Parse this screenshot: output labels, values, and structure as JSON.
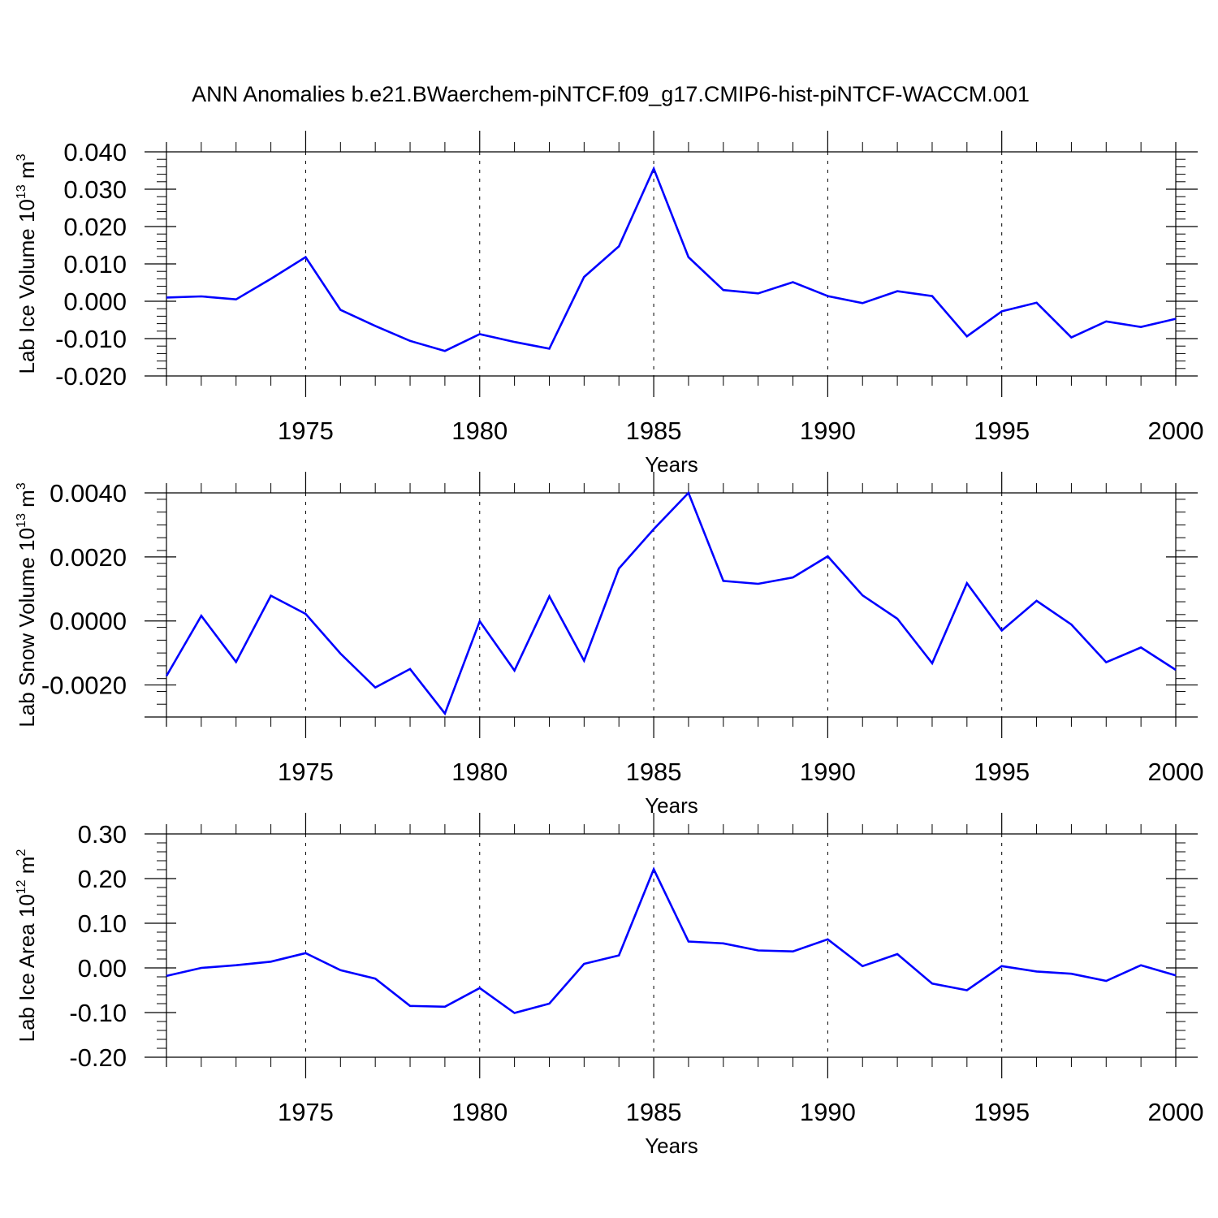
{
  "title": "ANN Anomalies b.e21.BWaerchem-piNTCF.f09_g17.CMIP6-hist-piNTCF-WACCM.001",
  "line_color": "#0000ff",
  "chart_data": [
    {
      "type": "line",
      "ylabel": "Lab Ice Volume",
      "yunit_base": "10",
      "yunit_exp": "13",
      "yunit_tail": "m",
      "yunit_tail_exp": "3",
      "xlabel": "Years",
      "xlim": [
        1971,
        2000
      ],
      "ylim": [
        -0.02,
        0.04
      ],
      "yticks": [
        -0.02,
        -0.01,
        0.0,
        0.01,
        0.02,
        0.03,
        0.04
      ],
      "ytick_labels": [
        "-0.020",
        "-0.010",
        "0.000",
        "0.010",
        "0.020",
        "0.030",
        "0.040"
      ],
      "xticks": [
        1975,
        1980,
        1985,
        1990,
        1995,
        2000
      ],
      "xtick_labels": [
        "1975",
        "1980",
        "1985",
        "1990",
        "1995",
        "2000"
      ],
      "grid": "vertical dashed lines at x tick positions",
      "series": [
        {
          "x": [
            1971,
            1972,
            1973,
            1974,
            1975,
            1976,
            1977,
            1978,
            1979,
            1980,
            1981,
            1982,
            1983,
            1984,
            1985,
            1986,
            1987,
            1988,
            1989,
            1990,
            1991,
            1992,
            1993,
            1994,
            1995,
            1996,
            1997,
            1998,
            1999,
            2000
          ],
          "values": [
            0.001,
            0.0013,
            0.0005,
            0.006,
            0.0118,
            -0.0023,
            -0.0066,
            -0.0106,
            -0.0133,
            -0.0088,
            -0.0109,
            -0.0127,
            0.0065,
            0.0147,
            0.0355,
            0.0118,
            0.003,
            0.0021,
            0.0051,
            0.0014,
            -0.0005,
            0.0027,
            0.0014,
            -0.0094,
            -0.0027,
            -0.0004,
            -0.0097,
            -0.0054,
            -0.0069,
            -0.0047
          ]
        }
      ]
    },
    {
      "type": "line",
      "ylabel": "Lab Snow Volume",
      "yunit_base": "10",
      "yunit_exp": "13",
      "yunit_tail": "m",
      "yunit_tail_exp": "3",
      "xlabel": "Years",
      "xlim": [
        1971,
        2000
      ],
      "ylim": [
        -0.003,
        0.004
      ],
      "yticks": [
        -0.002,
        0.0,
        0.002,
        0.004
      ],
      "ytick_labels": [
        "-0.0020",
        "0.0000",
        "0.0020",
        "0.0040"
      ],
      "xticks": [
        1975,
        1980,
        1985,
        1990,
        1995,
        2000
      ],
      "xtick_labels": [
        "1975",
        "1980",
        "1985",
        "1990",
        "1995",
        "2000"
      ],
      "grid": "vertical dashed lines at x tick positions",
      "series": [
        {
          "x": [
            1971,
            1972,
            1973,
            1974,
            1975,
            1976,
            1977,
            1978,
            1979,
            1980,
            1981,
            1982,
            1983,
            1984,
            1985,
            1986,
            1987,
            1988,
            1989,
            1990,
            1991,
            1992,
            1993,
            1994,
            1995,
            1996,
            1997,
            1998,
            1999,
            2000
          ],
          "values": [
            -0.00172,
            0.00016,
            -0.00128,
            0.00079,
            0.00022,
            -0.00102,
            -0.00208,
            -0.0015,
            -0.00289,
            -1e-05,
            -0.00155,
            0.00077,
            -0.00124,
            0.00164,
            0.00287,
            0.004,
            0.00125,
            0.00116,
            0.00136,
            0.00202,
            0.0008,
            7e-05,
            -0.00132,
            0.00118,
            -0.0003,
            0.00063,
            -0.00011,
            -0.00129,
            -0.00083,
            -0.00153
          ]
        }
      ]
    },
    {
      "type": "line",
      "ylabel": "Lab Ice Area",
      "yunit_base": "10",
      "yunit_exp": "12",
      "yunit_tail": "m",
      "yunit_tail_exp": "2",
      "xlabel": "Years",
      "xlim": [
        1971,
        2000
      ],
      "ylim": [
        -0.2,
        0.3
      ],
      "yticks": [
        -0.2,
        -0.1,
        0.0,
        0.1,
        0.2,
        0.3
      ],
      "ytick_labels": [
        "-0.20",
        "-0.10",
        "0.00",
        "0.10",
        "0.20",
        "0.30"
      ],
      "xticks": [
        1975,
        1980,
        1985,
        1990,
        1995,
        2000
      ],
      "xtick_labels": [
        "1975",
        "1980",
        "1985",
        "1990",
        "1995",
        "2000"
      ],
      "grid": "vertical dashed lines at x tick positions",
      "series": [
        {
          "x": [
            1971,
            1972,
            1973,
            1974,
            1975,
            1976,
            1977,
            1978,
            1979,
            1980,
            1981,
            1982,
            1983,
            1984,
            1985,
            1986,
            1987,
            1988,
            1989,
            1990,
            1991,
            1992,
            1993,
            1994,
            1995,
            1996,
            1997,
            1998,
            1999,
            2000
          ],
          "values": [
            -0.018,
            0.0,
            0.006,
            0.014,
            0.033,
            -0.005,
            -0.024,
            -0.085,
            -0.087,
            -0.045,
            -0.101,
            -0.08,
            0.009,
            0.028,
            0.221,
            0.059,
            0.055,
            0.039,
            0.037,
            0.064,
            0.004,
            0.031,
            -0.035,
            -0.05,
            0.004,
            -0.008,
            -0.013,
            -0.029,
            0.006,
            -0.017
          ]
        }
      ]
    }
  ]
}
